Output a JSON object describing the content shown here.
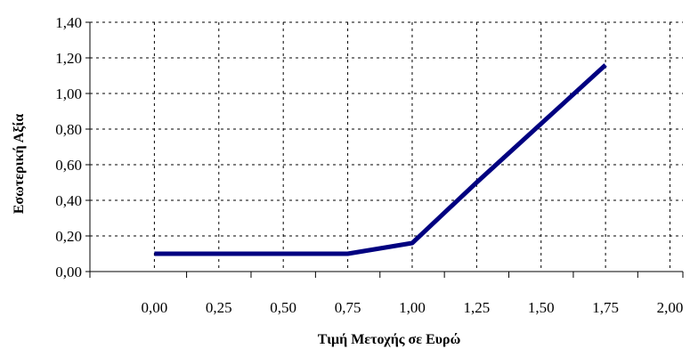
{
  "chart_data": {
    "type": "line",
    "xlabel": "Τιμή Μετοχής σε Ευρώ",
    "ylabel": "Εσωτερική Αξία",
    "xlim": [
      -0.25,
      2.05
    ],
    "ylim": [
      0,
      1.4
    ],
    "x_ticks": [
      "0,00",
      "0,25",
      "0,50",
      "0,75",
      "1,00",
      "1,25",
      "1,50",
      "1,75",
      "2,00"
    ],
    "x_tick_values": [
      0,
      0.25,
      0.5,
      0.75,
      1.0,
      1.25,
      1.5,
      1.75,
      2.0
    ],
    "y_ticks": [
      "0,00",
      "0,20",
      "0,40",
      "0,60",
      "0,80",
      "1,00",
      "1,20",
      "1,40"
    ],
    "y_tick_values": [
      0,
      0.2,
      0.4,
      0.6,
      0.8,
      1.0,
      1.2,
      1.4
    ],
    "grid": true,
    "series": [
      {
        "color": "#000080",
        "points": [
          {
            "x": 0.0,
            "y": 0.1
          },
          {
            "x": 0.25,
            "y": 0.1
          },
          {
            "x": 0.5,
            "y": 0.1
          },
          {
            "x": 0.75,
            "y": 0.1
          },
          {
            "x": 1.0,
            "y": 0.16
          },
          {
            "x": 1.25,
            "y": 0.5
          },
          {
            "x": 1.5,
            "y": 0.83
          },
          {
            "x": 1.75,
            "y": 1.16
          }
        ]
      }
    ]
  }
}
